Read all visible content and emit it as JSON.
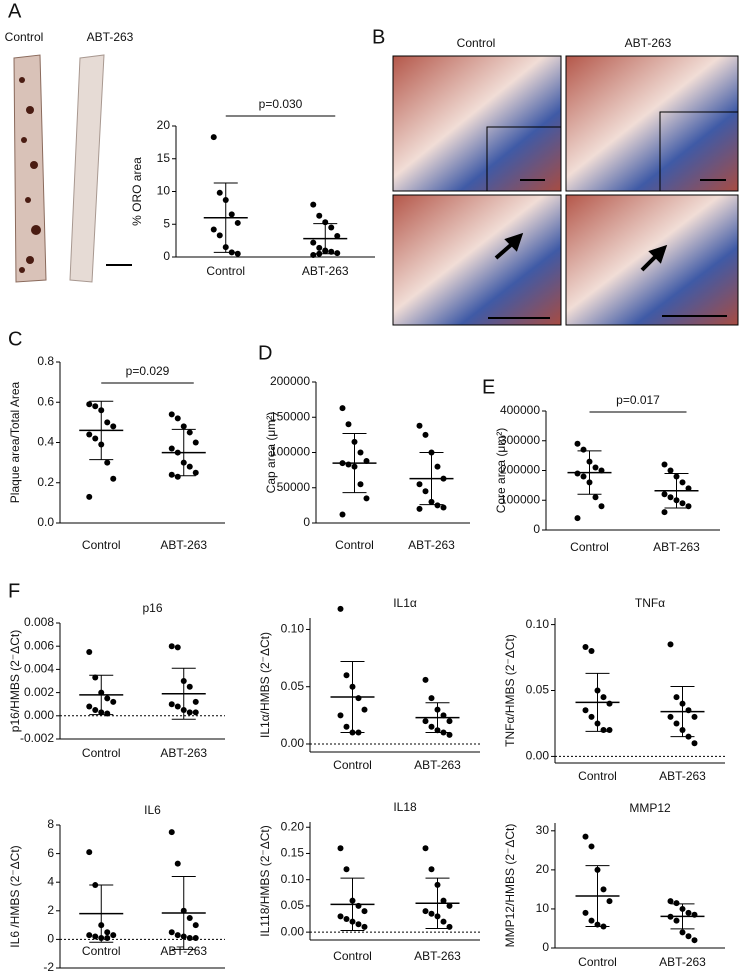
{
  "figure": {
    "panel_labels": [
      "A",
      "B",
      "C",
      "D",
      "E",
      "F"
    ],
    "image_labels_a": [
      "Control",
      "ABT-263"
    ],
    "image_labels_b": [
      "Control",
      "ABT-263"
    ]
  },
  "chart_data": [
    {
      "type": "dot",
      "ylabel": "% ORO area",
      "categories": [
        "Control",
        "ABT-263"
      ],
      "values": [
        [
          18.3,
          9.8,
          8.7,
          6.5,
          5.2,
          4.2,
          3.3,
          1.5,
          0.7,
          0.5
        ],
        [
          8.0,
          6.3,
          5.3,
          4.5,
          3.2,
          2.2,
          1.4,
          1.0,
          0.8,
          0.6,
          0.3,
          0.5,
          0.9
        ]
      ],
      "means": [
        6.0,
        2.8
      ],
      "sds": [
        5.3,
        2.3
      ],
      "ylim": [
        0,
        20
      ],
      "yticks": [
        0,
        5,
        10,
        15,
        20
      ],
      "annotation": "p=0.030"
    },
    {
      "type": "dot",
      "ylabel": "Plaque area/Total Area",
      "categories": [
        "Control",
        "ABT-263"
      ],
      "values": [
        [
          0.59,
          0.58,
          0.56,
          0.5,
          0.48,
          0.44,
          0.42,
          0.39,
          0.3,
          0.22,
          0.13
        ],
        [
          0.54,
          0.52,
          0.48,
          0.45,
          0.4,
          0.37,
          0.35,
          0.3,
          0.28,
          0.25,
          0.24,
          0.23
        ]
      ],
      "means": [
        0.46,
        0.35
      ],
      "sds": [
        0.145,
        0.115
      ],
      "ylim": [
        0,
        0.8
      ],
      "yticks": [
        {
          "value": 0,
          "label": "0.0"
        },
        0.2,
        0.4,
        0.6,
        0.8
      ],
      "annotation": "p=0.029"
    },
    {
      "type": "dot",
      "ylabel": "Cap area (μm²)",
      "categories": [
        "Control",
        "ABT-263"
      ],
      "values": [
        [
          163000,
          140000,
          115000,
          100000,
          88000,
          85000,
          83000,
          80000,
          55000,
          35000,
          12000
        ],
        [
          138000,
          125000,
          100000,
          80000,
          63000,
          55000,
          45000,
          30000,
          25000,
          22000,
          20000
        ]
      ],
      "means": [
        85000,
        63000
      ],
      "sds": [
        42000,
        37000
      ],
      "ylim": [
        0,
        200000
      ],
      "yticks": [
        0,
        50000,
        100000,
        150000,
        200000
      ]
    },
    {
      "type": "dot",
      "ylabel": "Core area (μm²)",
      "categories": [
        "Control",
        "ABT-263"
      ],
      "values": [
        [
          290000,
          270000,
          230000,
          210000,
          200000,
          190000,
          180000,
          160000,
          110000,
          80000,
          40000
        ],
        [
          220000,
          200000,
          180000,
          160000,
          140000,
          120000,
          110000,
          100000,
          90000,
          80000,
          60000
        ]
      ],
      "means": [
        193000,
        132000
      ],
      "sds": [
        73000,
        58000
      ],
      "ylim": [
        0,
        400000
      ],
      "yticks": [
        0,
        100000,
        200000,
        300000,
        400000
      ],
      "annotation": "p=0.017"
    },
    {
      "type": "dot",
      "title": "p16",
      "ylabel": "p16/HMBS (2⁻ΔCt)",
      "categories": [
        "Control",
        "ABT-263"
      ],
      "values": [
        [
          0.0055,
          0.0033,
          0.002,
          0.0015,
          0.0012,
          0.0008,
          0.0005,
          0.0003,
          0.0002
        ],
        [
          0.006,
          0.0059,
          0.003,
          0.0025,
          0.0012,
          0.001,
          0.0008,
          0.0005,
          0.0003,
          0.0003
        ]
      ],
      "means": [
        0.0018,
        0.0019
      ],
      "sds": [
        0.0017,
        0.0022
      ],
      "ylim": [
        -0.002,
        0.008
      ],
      "yticks": [
        -0.002,
        {
          "value": 0,
          "label": "0.000"
        },
        0.002,
        0.004,
        0.006,
        0.008
      ],
      "zero_line": true
    },
    {
      "type": "dot",
      "title": "IL1α",
      "ylabel": "IL1α/HMBS (2⁻ΔCt)",
      "categories": [
        "Control",
        "ABT-263"
      ],
      "values": [
        [
          0.118,
          0.06,
          0.05,
          0.04,
          0.03,
          0.025,
          0.015,
          0.01,
          0.01
        ],
        [
          0.056,
          0.04,
          0.03,
          0.025,
          0.02,
          0.02,
          0.015,
          0.012,
          0.01,
          0.008
        ]
      ],
      "means": [
        0.041,
        0.023
      ],
      "sds": [
        0.031,
        0.013
      ],
      "ylim": [
        -0.007,
        0.11
      ],
      "yticks": [
        {
          "value": 0,
          "label": "0.00"
        },
        0.05,
        {
          "value": 0.1,
          "label": "0.10"
        }
      ],
      "zero_line": true
    },
    {
      "type": "dot",
      "title": "TNFα",
      "ylabel": "TNFα/HMBS (2⁻ΔCt)",
      "categories": [
        "Control",
        "ABT-263"
      ],
      "values": [
        [
          0.083,
          0.08,
          0.05,
          0.045,
          0.04,
          0.035,
          0.03,
          0.025,
          0.02,
          0.02
        ],
        [
          0.085,
          0.045,
          0.04,
          0.035,
          0.03,
          0.03,
          0.025,
          0.02,
          0.015,
          0.01
        ]
      ],
      "means": [
        0.041,
        0.034
      ],
      "sds": [
        0.022,
        0.019
      ],
      "ylim": [
        -0.005,
        0.105
      ],
      "yticks": [
        {
          "value": 0,
          "label": "0.00"
        },
        0.05,
        {
          "value": 0.1,
          "label": "0.10"
        }
      ],
      "zero_line": true
    },
    {
      "type": "dot",
      "title": "IL6",
      "ylabel": "IL6 /HMBS (2⁻ΔCt)",
      "categories": [
        "Control",
        "ABT-263"
      ],
      "values": [
        [
          6.1,
          3.8,
          1.0,
          0.5,
          0.3,
          0.3,
          0.2,
          0.1,
          0.1
        ],
        [
          7.5,
          5.3,
          2.0,
          1.5,
          1.0,
          0.5,
          0.3,
          0.2,
          0.1,
          0.1
        ]
      ],
      "means": [
        1.8,
        1.85
      ],
      "sds": [
        2.0,
        2.55
      ],
      "ylim": [
        -2,
        8
      ],
      "yticks": [
        -2,
        0,
        2,
        4,
        6,
        8
      ],
      "zero_line": true
    },
    {
      "type": "dot",
      "title": "IL18",
      "ylabel": "IL118/HMBS (2⁻ΔCt)",
      "categories": [
        "Control",
        "ABT-263"
      ],
      "values": [
        [
          0.16,
          0.12,
          0.06,
          0.05,
          0.04,
          0.03,
          0.025,
          0.02,
          0.015,
          0.01
        ],
        [
          0.16,
          0.12,
          0.09,
          0.06,
          0.05,
          0.04,
          0.035,
          0.03,
          0.02,
          0.01
        ]
      ],
      "means": [
        0.053,
        0.055
      ],
      "sds": [
        0.05,
        0.048
      ],
      "ylim": [
        -0.015,
        0.21
      ],
      "yticks": [
        {
          "value": 0,
          "label": "0.00"
        },
        0.05,
        {
          "value": 0.1,
          "label": "0.10"
        },
        0.15,
        {
          "value": 0.2,
          "label": "0.20"
        }
      ],
      "zero_line": true
    },
    {
      "type": "dot",
      "title": "MMP12",
      "ylabel": "MMP12/HMBS (2⁻ΔCt)",
      "categories": [
        "Control",
        "ABT-263"
      ],
      "values": [
        [
          28.5,
          26,
          20,
          15,
          12,
          9,
          7,
          6,
          5.5
        ],
        [
          12,
          11.5,
          10,
          9,
          8.5,
          8,
          7,
          4,
          3,
          2
        ]
      ],
      "means": [
        13.3,
        8.1
      ],
      "sds": [
        7.8,
        3.2
      ],
      "ylim": [
        0,
        32
      ],
      "yticks": [
        0,
        10,
        20,
        30
      ]
    }
  ]
}
